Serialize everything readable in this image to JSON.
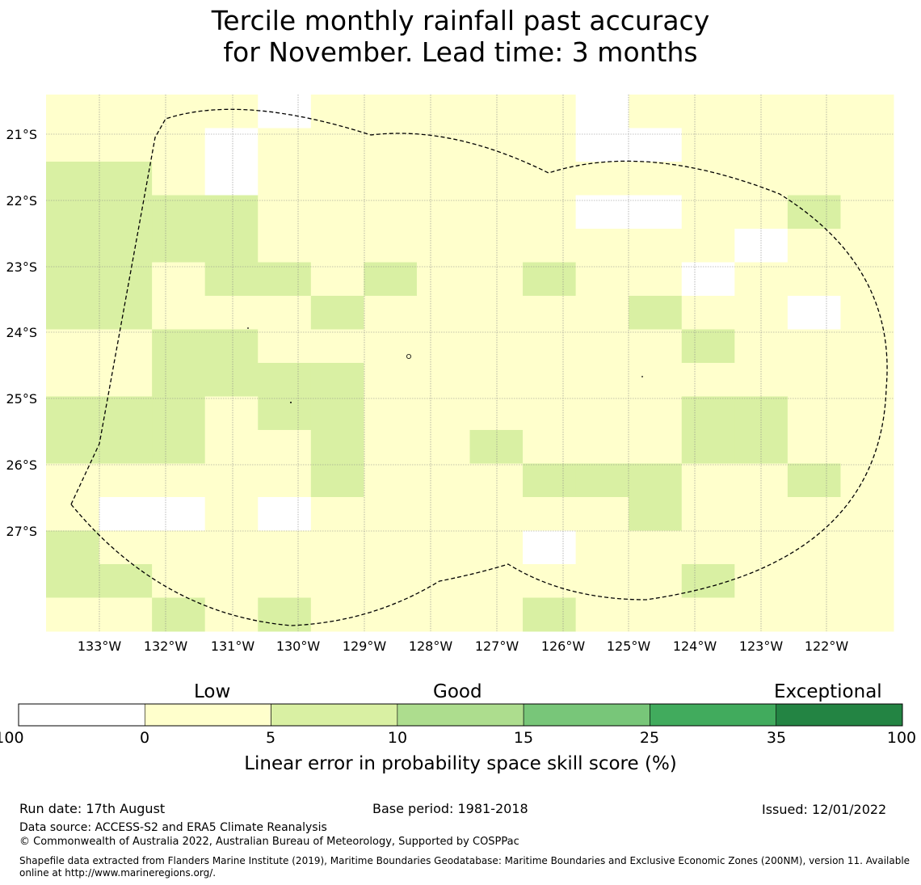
{
  "title": {
    "line1": "Tercile monthly rainfall past accuracy",
    "line2": "for November. Lead time: 3 months"
  },
  "map": {
    "lat_labels": [
      "21°S",
      "22°S",
      "23°S",
      "24°S",
      "25°S",
      "26°S",
      "27°S"
    ],
    "lon_labels": [
      "133°W",
      "132°W",
      "131°W",
      "130°W",
      "129°W",
      "128°W",
      "127°W",
      "126°W",
      "125°W",
      "124°W",
      "123°W",
      "122°W"
    ],
    "grid_classes_legend": "0 = <0 (white), 1 = 0–5, 2 = 5–10",
    "grid": [
      [
        1,
        1,
        1,
        1,
        0,
        1,
        1,
        1,
        1,
        1,
        0,
        1,
        1,
        1,
        1,
        1
      ],
      [
        1,
        1,
        1,
        0,
        1,
        1,
        1,
        1,
        1,
        1,
        0,
        0,
        1,
        1,
        1,
        1
      ],
      [
        2,
        2,
        1,
        0,
        1,
        1,
        1,
        1,
        1,
        1,
        1,
        1,
        1,
        1,
        1,
        1
      ],
      [
        2,
        2,
        2,
        2,
        1,
        1,
        1,
        1,
        1,
        1,
        0,
        0,
        1,
        1,
        2,
        1
      ],
      [
        2,
        2,
        2,
        2,
        1,
        1,
        1,
        1,
        1,
        1,
        1,
        1,
        1,
        0,
        1,
        1
      ],
      [
        2,
        2,
        1,
        2,
        2,
        1,
        2,
        1,
        1,
        2,
        1,
        1,
        0,
        1,
        1,
        1
      ],
      [
        2,
        2,
        1,
        1,
        1,
        2,
        1,
        1,
        1,
        1,
        1,
        2,
        1,
        1,
        0,
        1
      ],
      [
        1,
        1,
        2,
        2,
        1,
        1,
        1,
        1,
        1,
        1,
        1,
        1,
        2,
        1,
        1,
        1
      ],
      [
        1,
        1,
        2,
        2,
        2,
        2,
        1,
        1,
        1,
        1,
        1,
        1,
        1,
        1,
        1,
        1
      ],
      [
        2,
        2,
        2,
        1,
        2,
        2,
        1,
        1,
        1,
        1,
        1,
        1,
        2,
        2,
        1,
        1
      ],
      [
        2,
        2,
        2,
        1,
        1,
        2,
        1,
        1,
        2,
        1,
        1,
        1,
        2,
        2,
        1,
        1
      ],
      [
        1,
        1,
        1,
        1,
        1,
        2,
        1,
        1,
        1,
        2,
        2,
        2,
        1,
        1,
        2,
        1
      ],
      [
        1,
        0,
        0,
        1,
        0,
        1,
        1,
        1,
        1,
        1,
        1,
        2,
        1,
        1,
        1,
        1
      ],
      [
        2,
        1,
        1,
        1,
        1,
        1,
        1,
        1,
        1,
        0,
        1,
        1,
        1,
        1,
        1,
        1
      ],
      [
        2,
        2,
        1,
        1,
        1,
        1,
        1,
        1,
        1,
        1,
        1,
        1,
        2,
        1,
        1,
        1
      ],
      [
        1,
        1,
        2,
        1,
        2,
        1,
        1,
        1,
        1,
        2,
        1,
        1,
        1,
        1,
        1,
        1
      ]
    ]
  },
  "colorbar": {
    "categories": [
      "Low",
      "Good",
      "Exceptional"
    ],
    "ticks": [
      "-100",
      "0",
      "5",
      "10",
      "15",
      "25",
      "35",
      "100"
    ],
    "colors": [
      "#ffffff",
      "#ffffcc",
      "#d9f0a3",
      "#addd8e",
      "#78c679",
      "#41ab5d",
      "#238443"
    ],
    "label": "Linear error in probability space skill score (%)"
  },
  "footer": {
    "run_date": "Run date: 17th August",
    "base_period": "Base period: 1981-2018",
    "issued": "Issued: 12/01/2022",
    "data_source": "Data source: ACCESS-S2 and ERA5 Climate Reanalysis",
    "copyright": "© Commonwealth of Australia 2022, Australian Bureau of Meteorology, Supported by COSPPac",
    "shapefile": "Shapefile data extracted from Flanders Marine Institute (2019), Maritime Boundaries Geodatabase: Maritime Boundaries and Exclusive Economic Zones (200NM), version 11. Available online at http://www.marineregions.org/."
  }
}
